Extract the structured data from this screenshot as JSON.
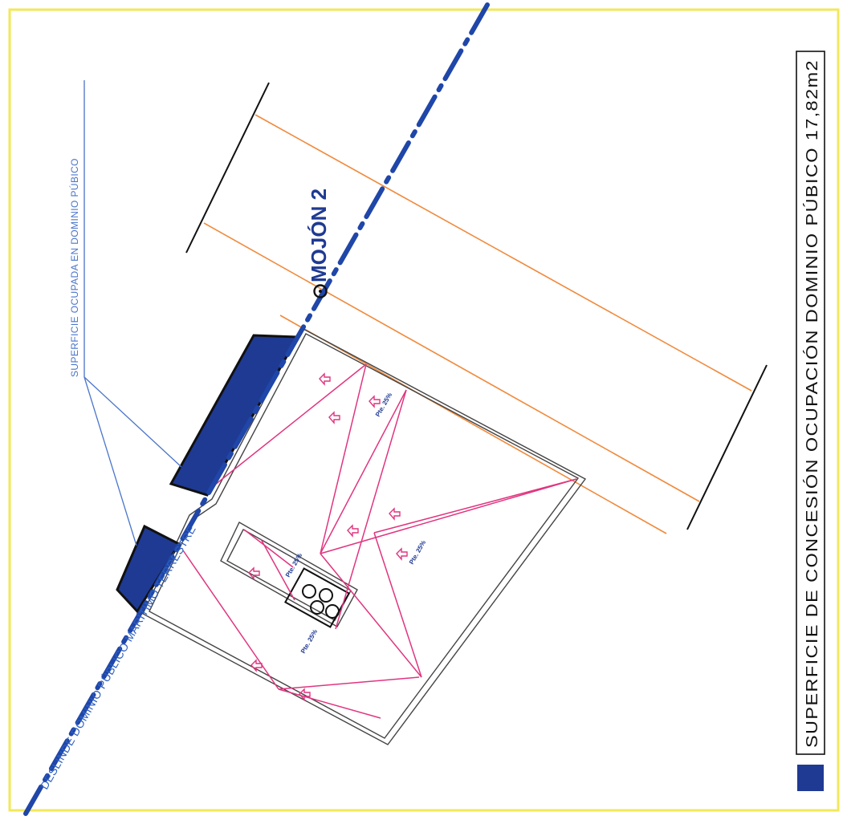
{
  "plan": {
    "demarcation_label": "DESLINDE DOMINIO PÚBLICO MARÍTIMO TERRESTRE",
    "marker_label": "MOJÓN 2",
    "occupied_surface_label": "SUPERFICIE OCUPADA EN DOMINIO PÚBICO",
    "roof_slope_label": "Pte. 25%"
  },
  "legend": {
    "label": "SUPERFICIE DE CONCESIÓN OCUPACIÓN DOMINIO PÚBICO 17,82m2"
  },
  "colors": {
    "frame": "#f2e85a",
    "demarcation_line": "#1f46a8",
    "occupied_fill": "#1f3a93",
    "roof_lines": "#e0357f",
    "setback_lines": "#f08a3c",
    "leader_lines": "#4a74c9"
  }
}
